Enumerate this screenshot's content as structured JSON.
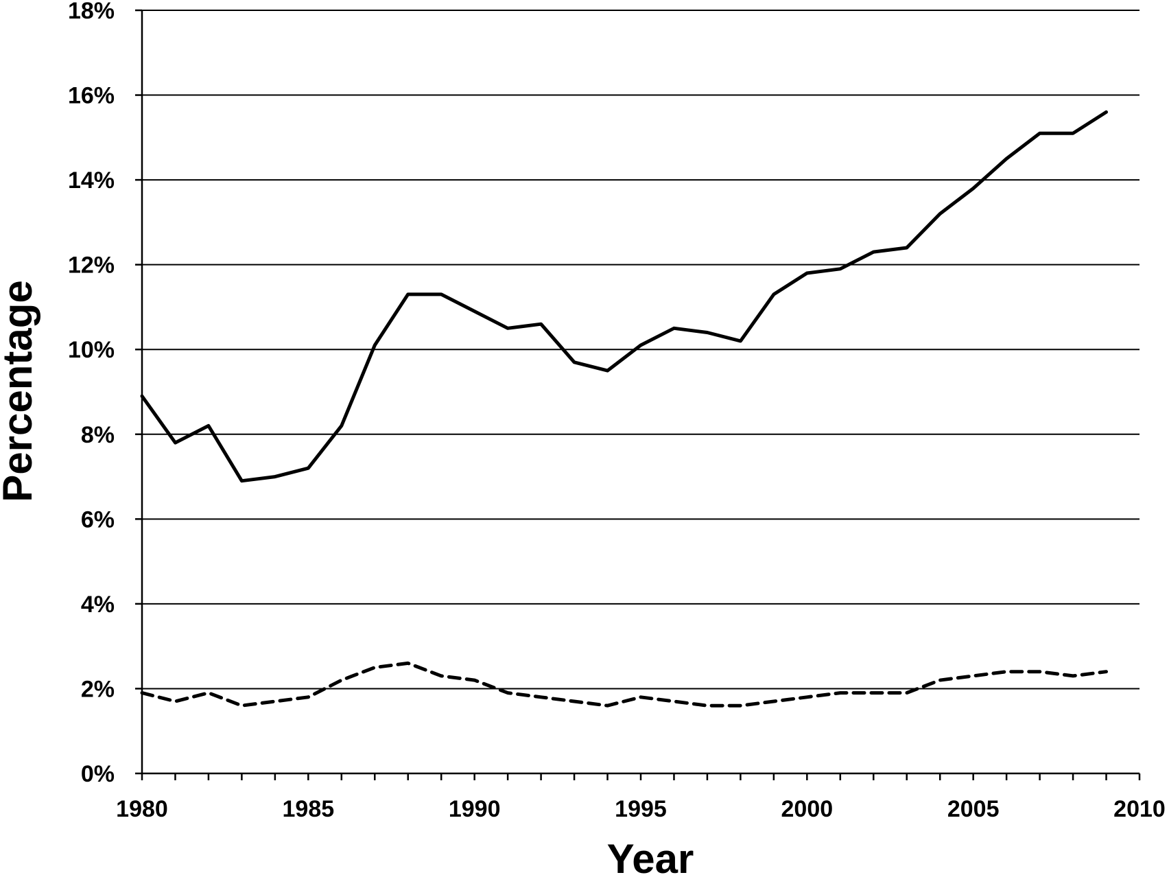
{
  "chart_data": {
    "type": "line",
    "title": "",
    "xlabel": "Year",
    "ylabel": "Percentage",
    "xlim": [
      1980,
      2010
    ],
    "ylim": [
      0,
      18
    ],
    "x_ticks": [
      "1980",
      "1985",
      "1990",
      "1995",
      "2000",
      "2005",
      "2010"
    ],
    "y_ticks": [
      "0%",
      "2%",
      "4%",
      "6%",
      "8%",
      "10%",
      "12%",
      "14%",
      "16%",
      "18%"
    ],
    "grid": "horizontal",
    "legend": "none",
    "x": [
      1980,
      1981,
      1982,
      1983,
      1984,
      1985,
      1986,
      1987,
      1988,
      1989,
      1990,
      1991,
      1992,
      1993,
      1994,
      1995,
      1996,
      1997,
      1998,
      1999,
      2000,
      2001,
      2002,
      2003,
      2004,
      2005,
      2006,
      2007,
      2008,
      2009
    ],
    "series": [
      {
        "style": "solid",
        "color": "#000000",
        "values": [
          8.9,
          7.8,
          8.2,
          6.9,
          7.0,
          7.2,
          8.2,
          10.1,
          11.3,
          11.3,
          10.9,
          10.5,
          10.6,
          9.7,
          9.5,
          10.1,
          10.5,
          10.4,
          10.2,
          11.3,
          11.8,
          11.9,
          12.3,
          12.4,
          13.2,
          13.8,
          14.5,
          15.1,
          15.1,
          15.6
        ]
      },
      {
        "style": "dashed",
        "color": "#000000",
        "values": [
          1.9,
          1.7,
          1.9,
          1.6,
          1.7,
          1.8,
          2.2,
          2.5,
          2.6,
          2.3,
          2.2,
          1.9,
          1.8,
          1.7,
          1.6,
          1.8,
          1.7,
          1.6,
          1.6,
          1.7,
          1.8,
          1.9,
          1.9,
          1.9,
          2.2,
          2.3,
          2.4,
          2.4,
          2.3,
          2.4
        ]
      }
    ]
  }
}
